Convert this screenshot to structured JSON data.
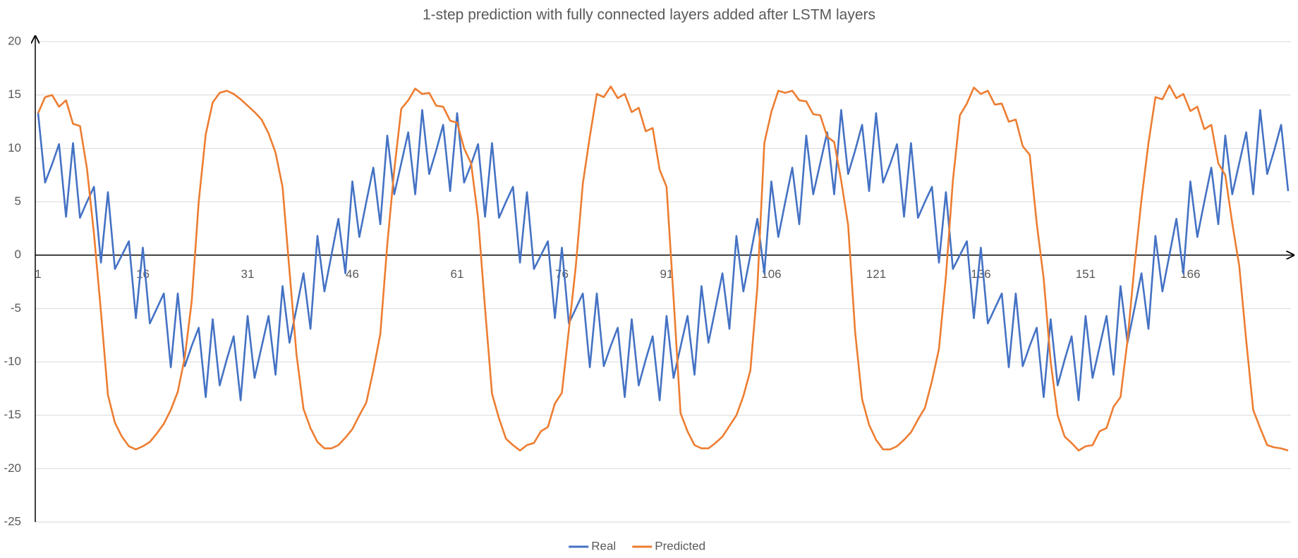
{
  "chart_data": {
    "type": "line",
    "title": "1-step prediction with fully connected layers added after LSTM layers",
    "categories": [
      1,
      null,
      null,
      null,
      null,
      null,
      null,
      null,
      null,
      null,
      null,
      null,
      null,
      null,
      null,
      16,
      null,
      null,
      null,
      null,
      null,
      null,
      null,
      null,
      null,
      null,
      null,
      null,
      null,
      null,
      31,
      null,
      null,
      null,
      null,
      null,
      null,
      null,
      null,
      null,
      null,
      null,
      null,
      null,
      null,
      46,
      null,
      null,
      null,
      null,
      null,
      null,
      null,
      null,
      null,
      null,
      null,
      null,
      null,
      null,
      61,
      null,
      null,
      null,
      null,
      null,
      null,
      null,
      null,
      null,
      null,
      null,
      null,
      null,
      null,
      76,
      null,
      null,
      null,
      null,
      null,
      null,
      null,
      null,
      null,
      null,
      null,
      null,
      null,
      null,
      91,
      null,
      null,
      null,
      null,
      null,
      null,
      null,
      null,
      null,
      null,
      null,
      null,
      null,
      null,
      106,
      null,
      null,
      null,
      null,
      null,
      null,
      null,
      null,
      null,
      null,
      null,
      null,
      null,
      null,
      121,
      null,
      null,
      null,
      null,
      null,
      null,
      null,
      null,
      null,
      null,
      null,
      null,
      null,
      null,
      136,
      null,
      null,
      null,
      null,
      null,
      null,
      null,
      null,
      null,
      null,
      null,
      null,
      null,
      null,
      151,
      null,
      null,
      null,
      null,
      null,
      null,
      null,
      null,
      null,
      null,
      null,
      null,
      null,
      null,
      166,
      null,
      null,
      null,
      null,
      null,
      null,
      null,
      null,
      null,
      null,
      null,
      null,
      null,
      null
    ],
    "series": [
      {
        "name": "Real",
        "color": "#4472c4",
        "values": [
          13.3,
          6.8,
          8.5,
          10.4,
          3.6,
          10.5,
          3.5,
          5,
          6.4,
          -0.7,
          5.9,
          -1.3,
          0,
          1.3,
          -5.9,
          0.7,
          -6.4,
          -5,
          -3.6,
          -10.5,
          -3.6,
          -10.4,
          -8.5,
          -6.8,
          -13.3,
          -6,
          -12.2,
          -9.8,
          -7.6,
          -13.6,
          -5.7,
          -11.5,
          -8.6,
          -5.7,
          -11.2,
          -2.9,
          -8.2,
          -5,
          -1.7,
          -6.9,
          1.8,
          -3.4,
          0,
          3.4,
          -1.7,
          6.9,
          1.7,
          5,
          8.2,
          2.9,
          11.2,
          5.7,
          8.6,
          11.5,
          5.7,
          13.6,
          7.6,
          9.8,
          12.2,
          6,
          13.3,
          6.8,
          8.5,
          10.4,
          3.6,
          10.5,
          3.5,
          5,
          6.4,
          -0.7,
          5.9,
          -1.3,
          0,
          1.3,
          -5.9,
          0.7,
          -6.4,
          -5,
          -3.6,
          -10.5,
          -3.6,
          -10.4,
          -8.5,
          -6.8,
          -13.3,
          -6,
          -12.2,
          -9.8,
          -7.6,
          -13.6,
          -5.7,
          -11.5,
          -8.6,
          -5.7,
          -11.2,
          -2.9,
          -8.2,
          -5,
          -1.7,
          -6.9,
          1.8,
          -3.4,
          0,
          3.4,
          -1.7,
          6.9,
          1.7,
          5,
          8.2,
          2.9,
          11.2,
          5.7,
          8.6,
          11.5,
          5.7,
          13.6,
          7.6,
          9.8,
          12.2,
          6,
          13.3,
          6.8,
          8.5,
          10.4,
          3.6,
          10.5,
          3.5,
          5,
          6.4,
          -0.7,
          5.9,
          -1.3,
          0,
          1.3,
          -5.9,
          0.7,
          -6.4,
          -5,
          -3.6,
          -10.5,
          -3.6,
          -10.4,
          -8.5,
          -6.8,
          -13.3,
          -6,
          -12.2,
          -9.8,
          -7.6,
          -13.6,
          -5.7,
          -11.5,
          -8.6,
          -5.7,
          -11.2,
          -2.9,
          -8.2,
          -5,
          -1.7,
          -6.9,
          1.8,
          -3.4,
          0,
          3.4,
          -1.7,
          6.9,
          1.7,
          5,
          8.2,
          2.9,
          11.2,
          5.7,
          8.6,
          11.5,
          5.7,
          13.6,
          7.6,
          9.8,
          12.2,
          6
        ]
      },
      {
        "name": "Predicted",
        "color": "#ed7d31",
        "values": [
          13.3,
          14.8,
          15.0,
          13.9,
          14.5,
          12.3,
          12.1,
          8.1,
          2,
          -5.3,
          -13.1,
          -15.7,
          -17.0,
          -17.9,
          -18.2,
          -17.9,
          -17.5,
          -16.7,
          -15.8,
          -14.5,
          -12.8,
          -9.6,
          -4.3,
          5.0,
          11.3,
          14.3,
          15.2,
          15.4,
          15.1,
          14.6,
          14.0,
          13.4,
          12.7,
          11.4,
          9.6,
          6.4,
          -1.5,
          -9.3,
          -14.4,
          -16.2,
          -17.5,
          -18.1,
          -18.1,
          -17.8,
          -17.1,
          -16.3,
          -15.0,
          -13.8,
          -10.8,
          -7.4,
          1.0,
          8.0,
          13.7,
          14.5,
          15.6,
          15.1,
          15.2,
          14.0,
          13.9,
          12.6,
          12.4,
          10,
          8.6,
          3.5,
          -5,
          -13,
          -15.3,
          -17.2,
          -17.8,
          -18.3,
          -17.8,
          -17.6,
          -16.5,
          -16.1,
          -13.9,
          -12.9,
          -7,
          -1,
          6.7,
          11.1,
          15.1,
          14.8,
          15.8,
          14.7,
          15.1,
          13.4,
          13.8,
          11.6,
          11.9,
          8.0,
          6.4,
          -4,
          -14.8,
          -16.5,
          -17.8,
          -18.1,
          -18.1,
          -17.6,
          -17,
          -16,
          -15,
          -13.2,
          -10.8,
          -3,
          10.5,
          13.4,
          15.4,
          15.2,
          15.4,
          14.5,
          14.4,
          13.2,
          13.1,
          11.1,
          10.6,
          7,
          2.8,
          -7.2,
          -13.5,
          -15.9,
          -17.3,
          -18.2,
          -18.2,
          -17.9,
          -17.3,
          -16.6,
          -15.4,
          -14.3,
          -11.8,
          -8.8,
          -2,
          7,
          13.1,
          14.2,
          15.7,
          15.1,
          15.4,
          14.1,
          14.2,
          12.5,
          12.7,
          10.2,
          9.4,
          3,
          -2.2,
          -10,
          -15,
          -17,
          -17.6,
          -18.3,
          -17.9,
          -17.8,
          -16.5,
          -16.2,
          -14.2,
          -13.3,
          -8,
          -1,
          5.2,
          10.5,
          14.8,
          14.6,
          15.9,
          14.7,
          15.1,
          13.5,
          13.9,
          11.8,
          12.2,
          8.6,
          7.5,
          3,
          -1,
          -8,
          -14.5,
          -16.2,
          -17.8,
          -18,
          -18.1,
          -18.3
        ]
      }
    ],
    "ylim": [
      -25,
      20
    ],
    "yticks": [
      -25,
      -20,
      -15,
      -10,
      -5,
      0,
      5,
      10,
      15,
      20
    ],
    "grid": true,
    "legend": "bottom"
  }
}
